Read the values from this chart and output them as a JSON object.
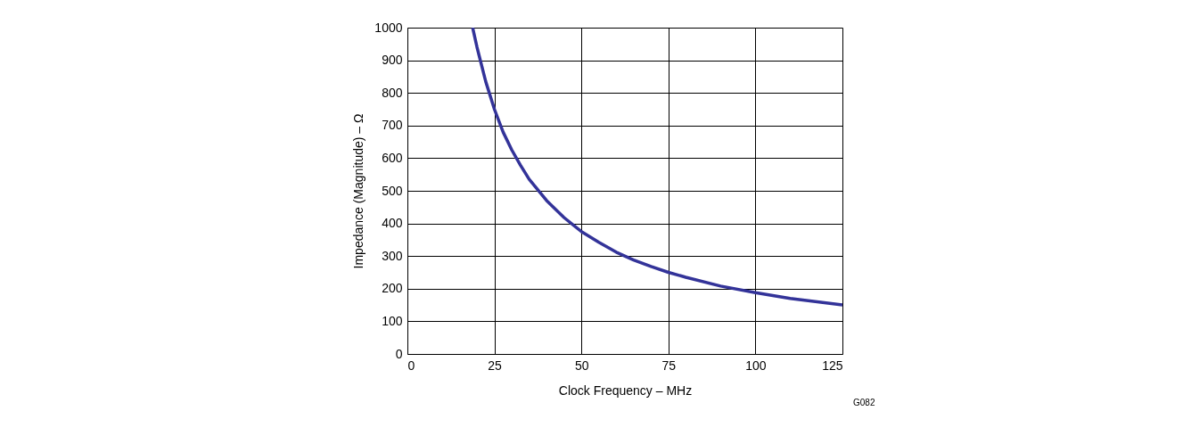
{
  "chart_data": {
    "type": "line",
    "xlabel": "Clock Frequency – MHz",
    "ylabel": "Impedance (Magnitude) – Ω",
    "x": [
      18.75,
      20,
      22.5,
      25,
      27.5,
      30,
      32.5,
      35,
      40,
      45,
      50,
      55,
      60,
      65,
      70,
      75,
      80,
      90,
      100,
      110,
      125
    ],
    "series": [
      {
        "color": "#333399",
        "values": [
          1000,
          940,
          835,
          750,
          680,
          625,
          578,
          535,
          470,
          418,
          375,
          342,
          312,
          288,
          268,
          250,
          235,
          208,
          188,
          170,
          150
        ]
      }
    ],
    "xlim": [
      0,
      125
    ],
    "xticks": [
      0,
      25,
      50,
      75,
      100,
      125
    ],
    "ylim": [
      0,
      1000
    ],
    "yticks": [
      0,
      100,
      200,
      300,
      400,
      500,
      600,
      700,
      800,
      900,
      1000
    ],
    "grid": true,
    "marker": "none",
    "line_style": "solid",
    "annotations": [
      "G082"
    ]
  }
}
